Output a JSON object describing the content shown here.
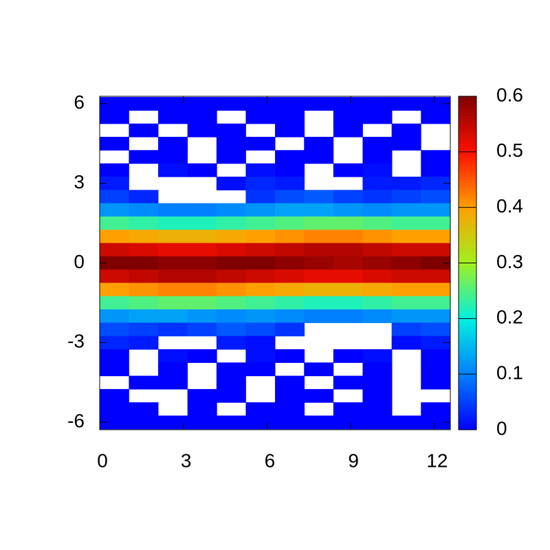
{
  "chart_data": {
    "type": "heatmap",
    "x": [
      0.52,
      1.57,
      2.62,
      3.67,
      4.71,
      5.76,
      6.81,
      7.85,
      8.9,
      9.95,
      10.99,
      12.04
    ],
    "y": [
      6,
      5.5,
      5,
      4.5,
      4,
      3.5,
      3,
      2.5,
      2,
      1.5,
      1,
      0.5,
      0,
      -0.5,
      -1,
      -1.5,
      -2,
      -2.5,
      -3,
      -3.5,
      -4,
      -4.5,
      -5,
      -5.5,
      -6
    ],
    "z": [
      [
        0,
        0,
        0,
        0,
        0,
        0,
        0,
        0,
        0,
        0,
        0,
        0
      ],
      [
        0,
        null,
        0,
        0,
        null,
        0,
        0,
        null,
        0,
        0,
        null,
        0
      ],
      [
        null,
        0,
        null,
        0,
        0,
        null,
        0,
        null,
        0,
        null,
        0,
        null
      ],
      [
        0,
        null,
        0,
        null,
        0,
        0,
        null,
        0,
        null,
        0,
        0,
        null
      ],
      [
        null,
        0,
        0,
        null,
        0,
        null,
        0,
        0,
        null,
        0,
        null,
        0
      ],
      [
        0,
        null,
        0.01,
        0,
        null,
        0.01,
        0,
        null,
        0,
        0.01,
        null,
        0
      ],
      [
        0.02,
        null,
        null,
        null,
        0.01,
        0.03,
        0.02,
        null,
        null,
        0.02,
        0.02,
        0.03
      ],
      [
        0.05,
        0.03,
        null,
        null,
        null,
        0.04,
        0.06,
        0.07,
        0.05,
        0.04,
        0.05,
        0.06
      ],
      [
        0.12,
        0.11,
        0.1,
        0.1,
        0.11,
        0.12,
        0.13,
        0.13,
        0.12,
        0.11,
        0.12,
        0.12
      ],
      [
        0.24,
        0.23,
        0.22,
        0.22,
        0.23,
        0.24,
        0.25,
        0.26,
        0.26,
        0.25,
        0.24,
        0.24
      ],
      [
        0.4,
        0.39,
        0.38,
        0.38,
        0.39,
        0.4,
        0.41,
        0.42,
        0.42,
        0.41,
        0.4,
        0.4
      ],
      [
        0.54,
        0.53,
        0.52,
        0.52,
        0.53,
        0.54,
        0.55,
        0.56,
        0.56,
        0.55,
        0.54,
        0.54
      ],
      [
        0.6,
        0.6,
        0.59,
        0.59,
        0.6,
        0.6,
        0.59,
        0.58,
        0.57,
        0.58,
        0.59,
        0.6
      ],
      [
        0.54,
        0.55,
        0.56,
        0.56,
        0.55,
        0.54,
        0.53,
        0.52,
        0.52,
        0.53,
        0.54,
        0.54
      ],
      [
        0.4,
        0.41,
        0.42,
        0.42,
        0.41,
        0.4,
        0.39,
        0.38,
        0.38,
        0.39,
        0.4,
        0.4
      ],
      [
        0.24,
        0.25,
        0.26,
        0.26,
        0.25,
        0.24,
        0.23,
        0.22,
        0.22,
        0.23,
        0.24,
        0.24
      ],
      [
        0.12,
        0.13,
        0.13,
        0.12,
        0.11,
        0.12,
        0.11,
        0.1,
        0.1,
        0.11,
        0.12,
        0.12
      ],
      [
        0.06,
        0.05,
        0.04,
        0.05,
        0.07,
        0.06,
        0.04,
        null,
        null,
        null,
        0.05,
        0.06
      ],
      [
        0.03,
        0.02,
        null,
        null,
        0.02,
        0.01,
        null,
        null,
        null,
        null,
        0.01,
        0.02
      ],
      [
        0,
        null,
        0.01,
        0,
        null,
        0.01,
        0,
        null,
        0,
        0.01,
        null,
        0
      ],
      [
        0,
        null,
        0,
        null,
        0,
        0,
        null,
        0,
        null,
        0,
        null,
        0
      ],
      [
        null,
        0,
        0,
        null,
        0,
        null,
        0,
        null,
        0,
        0,
        null,
        0
      ],
      [
        0,
        null,
        null,
        0,
        0,
        null,
        0,
        0,
        null,
        0,
        null,
        null
      ],
      [
        0,
        0,
        null,
        0,
        null,
        0,
        0,
        null,
        0,
        0,
        null,
        0
      ],
      [
        0,
        0,
        0,
        0,
        0,
        0,
        0,
        0,
        0,
        0,
        0,
        0
      ]
    ],
    "xlim": [
      0,
      12.57
    ],
    "ylim": [
      -6.28,
      6.28
    ],
    "xticks": [
      0,
      3,
      6,
      9,
      12
    ],
    "yticks": [
      -6,
      -3,
      0,
      3,
      6
    ],
    "clim": [
      0,
      0.6
    ],
    "cticks": [
      0,
      0.1,
      0.2,
      0.3,
      0.4,
      0.5,
      0.6
    ],
    "colormap": [
      "#0000ff",
      "#0080ff",
      "#00f0e0",
      "#a0f020",
      "#ffa000",
      "#ff1000",
      "#800000"
    ]
  }
}
